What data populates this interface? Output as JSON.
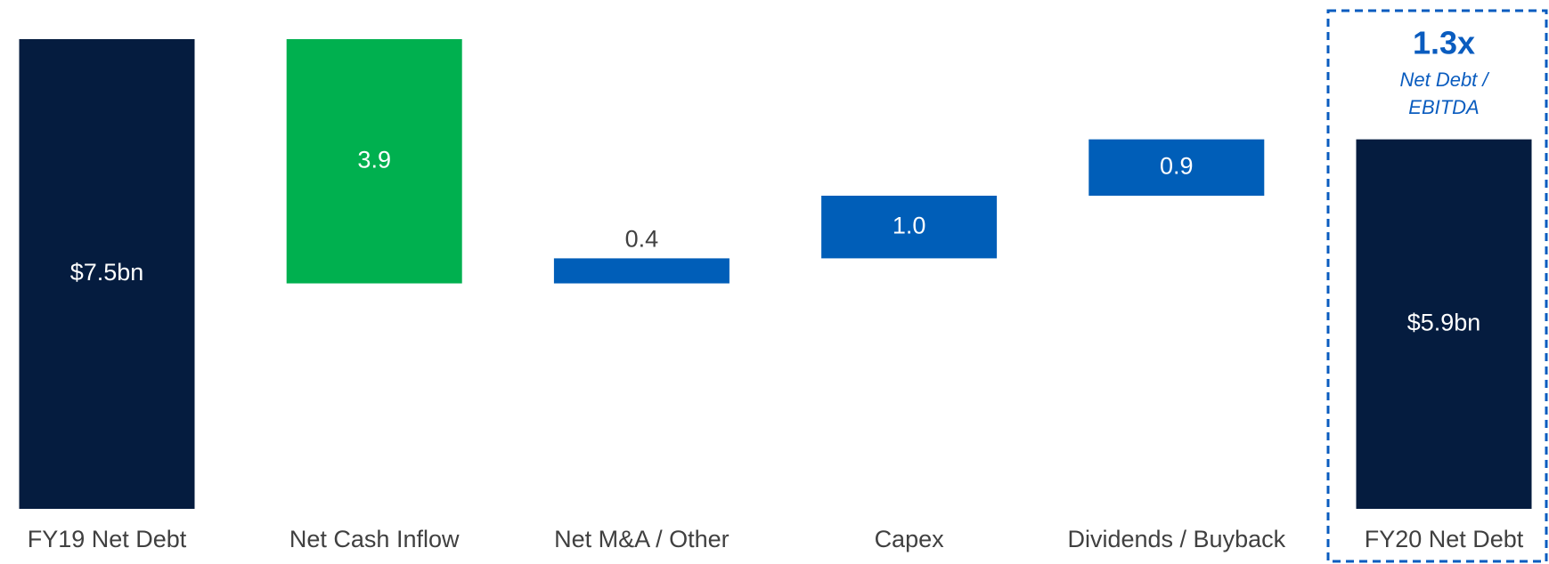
{
  "chart_data": {
    "type": "waterfall",
    "categories": [
      "FY19 Net Debt",
      "Net Cash Inflow",
      "Net M&A / Other",
      "Capex",
      "Dividends / Buyback",
      "FY20 Net Debt"
    ],
    "values": [
      7.5,
      -3.9,
      0.4,
      1.0,
      0.9,
      5.9
    ],
    "value_labels": [
      "$7.5bn",
      "3.9",
      "0.4",
      "1.0",
      "0.9",
      "$5.9bn"
    ],
    "colors": [
      "#051c3f",
      "#00b04f",
      "#005eb8",
      "#005eb8",
      "#005eb8",
      "#051c3f"
    ],
    "annotations": [
      "1.3x",
      "Net Debt /",
      "EBITDA"
    ]
  }
}
